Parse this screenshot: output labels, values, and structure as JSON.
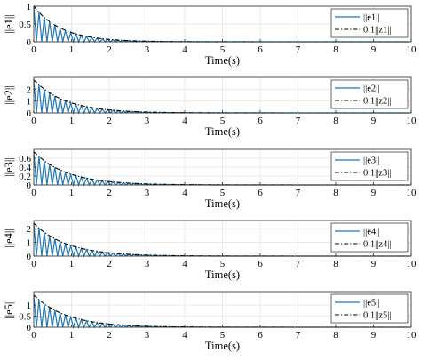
{
  "chart_data": [
    {
      "type": "line",
      "ylabel": "||e1||",
      "xlabel": "Time(s)",
      "xlim": [
        0,
        10
      ],
      "ylim": [
        0,
        1
      ],
      "yticks": [
        "0",
        "0.5",
        "1"
      ],
      "xticks": [
        "0",
        "1",
        "2",
        "3",
        "4",
        "5",
        "6",
        "7",
        "8",
        "9",
        "10"
      ],
      "grid": true,
      "legend_position": "top-right",
      "decay_rate": 1.35,
      "sawtooth_period": 0.14,
      "series": [
        {
          "name": "||e1||",
          "color": "#1f77b4",
          "style": "solid sawtooth",
          "x": [
            0,
            0.07,
            0.14,
            0.21,
            0.28,
            0.35,
            0.42,
            0.49,
            0.56
          ],
          "y": [
            1.0,
            0.0,
            0.83,
            0.0,
            0.69,
            0.0,
            0.57,
            0.0,
            0.47
          ]
        },
        {
          "name": "0.1||z1||",
          "color": "#000000",
          "style": "dash-dot",
          "x": [
            0,
            0.5,
            1,
            1.5,
            2,
            2.5,
            3,
            3.5,
            4,
            5,
            6,
            7,
            8,
            9,
            10
          ],
          "y": [
            1.0,
            0.51,
            0.26,
            0.13,
            0.067,
            0.034,
            0.017,
            0.009,
            0.0045,
            0.0012,
            0.0003,
            0.0001,
            0,
            0,
            0
          ]
        }
      ]
    },
    {
      "type": "line",
      "ylabel": "||e2||",
      "xlabel": "Time(s)",
      "xlim": [
        0,
        10
      ],
      "ylim": [
        0,
        3
      ],
      "yticks": [
        "0",
        "1",
        "2"
      ],
      "xticks": [
        "0",
        "1",
        "2",
        "3",
        "4",
        "5",
        "6",
        "7",
        "8",
        "9",
        "10"
      ],
      "grid": true,
      "legend_position": "top-right",
      "decay_rate": 1.2,
      "sawtooth_period": 0.14,
      "series": [
        {
          "name": "||e2||",
          "color": "#1f77b4",
          "style": "solid sawtooth",
          "x": [
            0,
            0.07,
            0.14,
            0.21,
            0.28,
            0.35,
            0.42
          ],
          "y": [
            2.8,
            0.0,
            2.37,
            0.0,
            2.0,
            0.0,
            1.69
          ]
        },
        {
          "name": "0.1||z2||",
          "color": "#000000",
          "style": "dash-dot",
          "x": [
            0,
            0.5,
            1,
            1.5,
            2,
            2.5,
            3,
            3.5,
            4,
            5,
            6,
            7,
            8,
            9,
            10
          ],
          "y": [
            2.8,
            1.54,
            0.84,
            0.46,
            0.25,
            0.14,
            0.077,
            0.042,
            0.023,
            0.007,
            0.002,
            0.0006,
            0.0002,
            0,
            0
          ]
        }
      ]
    },
    {
      "type": "line",
      "ylabel": "||e3||",
      "xlabel": "Time(s)",
      "xlim": [
        0,
        10
      ],
      "ylim": [
        0,
        0.8
      ],
      "yticks": [
        "0",
        "0.2",
        "0.4",
        "0.6"
      ],
      "xticks": [
        "0",
        "1",
        "2",
        "3",
        "4",
        "5",
        "6",
        "7",
        "8",
        "9",
        "10"
      ],
      "grid": true,
      "legend_position": "top-right",
      "decay_rate": 1.15,
      "sawtooth_period": 0.14,
      "series": [
        {
          "name": "||e3||",
          "color": "#1f77b4",
          "style": "solid sawtooth",
          "x": [
            0,
            0.07,
            0.14,
            0.21,
            0.28,
            0.35,
            0.42
          ],
          "y": [
            0.75,
            0.0,
            0.64,
            0.0,
            0.54,
            0.0,
            0.46
          ]
        },
        {
          "name": "0.1||z3||",
          "color": "#000000",
          "style": "dash-dot",
          "x": [
            0,
            0.5,
            1,
            1.5,
            2,
            2.5,
            3,
            3.5,
            4,
            5,
            6,
            7,
            8,
            9,
            10
          ],
          "y": [
            0.75,
            0.42,
            0.24,
            0.13,
            0.075,
            0.042,
            0.024,
            0.013,
            0.0075,
            0.0024,
            0.0008,
            0.0002,
            0.0001,
            0,
            0
          ]
        }
      ]
    },
    {
      "type": "line",
      "ylabel": "||e4||",
      "xlabel": "Time(s)",
      "xlim": [
        0,
        10
      ],
      "ylim": [
        0,
        2.6
      ],
      "yticks": [
        "0",
        "1",
        "2"
      ],
      "xticks": [
        "0",
        "1",
        "2",
        "3",
        "4",
        "5",
        "6",
        "7",
        "8",
        "9",
        "10"
      ],
      "grid": true,
      "legend_position": "top-right",
      "decay_rate": 1.15,
      "sawtooth_period": 0.14,
      "series": [
        {
          "name": "||e4||",
          "color": "#1f77b4",
          "style": "solid sawtooth",
          "x": [
            0,
            0.07,
            0.14,
            0.21,
            0.28,
            0.35,
            0.42
          ],
          "y": [
            2.4,
            0.0,
            2.05,
            0.0,
            1.74,
            0.0,
            1.48
          ]
        },
        {
          "name": "0.1||z4||",
          "color": "#000000",
          "style": "dash-dot",
          "x": [
            0,
            0.5,
            1,
            1.5,
            2,
            2.5,
            3,
            3.5,
            4,
            5,
            6,
            7,
            8,
            9,
            10
          ],
          "y": [
            2.4,
            1.35,
            0.76,
            0.43,
            0.24,
            0.136,
            0.076,
            0.043,
            0.024,
            0.0077,
            0.0024,
            0.0008,
            0.0002,
            0,
            0
          ]
        }
      ]
    },
    {
      "type": "line",
      "ylabel": "||e5||",
      "xlabel": "Time(s)",
      "xlim": [
        0,
        10
      ],
      "ylim": [
        0,
        1.6
      ],
      "yticks": [
        "0",
        "0.5",
        "1"
      ],
      "xticks": [
        "0",
        "1",
        "2",
        "3",
        "4",
        "5",
        "6",
        "7",
        "8",
        "9",
        "10"
      ],
      "grid": true,
      "legend_position": "top-right",
      "decay_rate": 1.15,
      "sawtooth_period": 0.14,
      "series": [
        {
          "name": "||e5||",
          "color": "#1f77b4",
          "style": "solid sawtooth",
          "x": [
            0,
            0.07,
            0.14,
            0.21,
            0.28,
            0.35,
            0.42
          ],
          "y": [
            1.45,
            0.0,
            1.24,
            0.0,
            1.05,
            0.0,
            0.9
          ]
        },
        {
          "name": "0.1||z5||",
          "color": "#000000",
          "style": "dash-dot",
          "x": [
            0,
            0.5,
            1,
            1.5,
            2,
            2.5,
            3,
            3.5,
            4,
            5,
            6,
            7,
            8,
            9,
            10
          ],
          "y": [
            1.45,
            0.82,
            0.46,
            0.26,
            0.146,
            0.082,
            0.046,
            0.026,
            0.015,
            0.0046,
            0.0015,
            0.0005,
            0.0001,
            0,
            0
          ]
        }
      ]
    }
  ]
}
